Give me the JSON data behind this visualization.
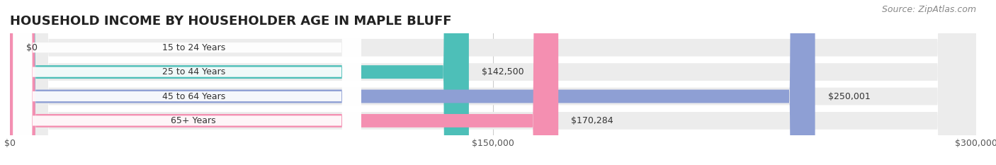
{
  "title": "HOUSEHOLD INCOME BY HOUSEHOLDER AGE IN MAPLE BLUFF",
  "source": "Source: ZipAtlas.com",
  "categories": [
    "15 to 24 Years",
    "25 to 44 Years",
    "45 to 64 Years",
    "65+ Years"
  ],
  "values": [
    0,
    142500,
    250001,
    170284
  ],
  "bar_colors": [
    "#c9a0c8",
    "#4dbfb8",
    "#8e9fd4",
    "#f48fb1"
  ],
  "xlim": [
    0,
    300000
  ],
  "xticks": [
    0,
    150000,
    300000
  ],
  "xtick_labels": [
    "$0",
    "$150,000",
    "$300,000"
  ],
  "title_fontsize": 13,
  "source_fontsize": 9,
  "label_fontsize": 9,
  "value_fontsize": 9,
  "background_color": "#ffffff"
}
